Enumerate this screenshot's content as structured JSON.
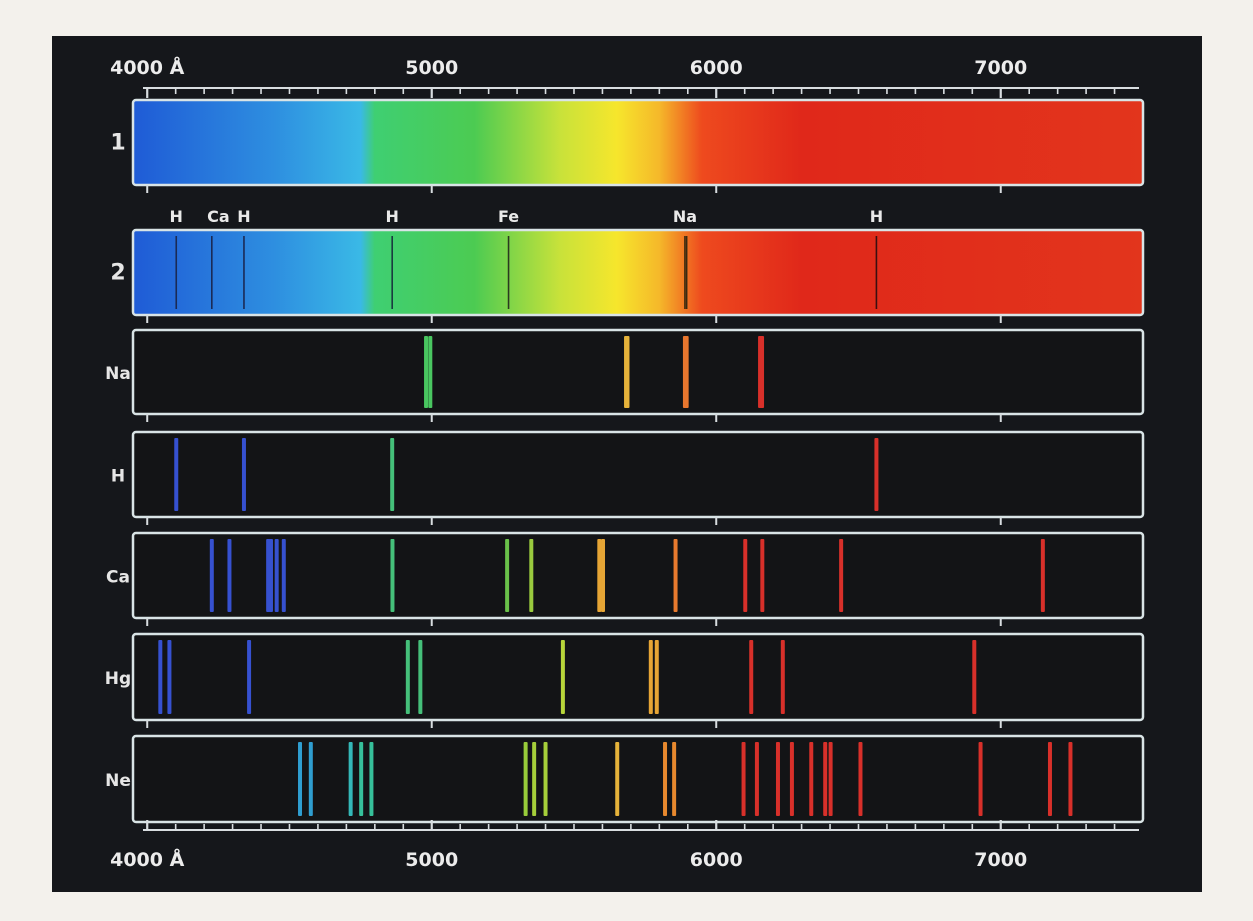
{
  "axis": {
    "min": 3950,
    "max": 7500,
    "major_ticks": [
      {
        "value": 4000,
        "label": "4000 Å"
      },
      {
        "value": 5000,
        "label": "5000"
      },
      {
        "value": 6000,
        "label": "6000"
      },
      {
        "value": 7000,
        "label": "7000"
      }
    ],
    "minor_step": 100
  },
  "rows": [
    {
      "id": "1",
      "label": "1",
      "type": "continuous",
      "gradient": [
        {
          "value": 3950,
          "color": "#1f5bd6"
        },
        {
          "value": 4450,
          "color": "#2e8fe0"
        },
        {
          "value": 4750,
          "color": "#3ab9e6"
        },
        {
          "value": 4800,
          "color": "#3fcf72"
        },
        {
          "value": 5150,
          "color": "#4ccb52"
        },
        {
          "value": 5450,
          "color": "#c8e23a"
        },
        {
          "value": 5650,
          "color": "#f6e62c"
        },
        {
          "value": 5800,
          "color": "#f5b82a"
        },
        {
          "value": 5950,
          "color": "#ee4a1e"
        },
        {
          "value": 6300,
          "color": "#e0281a"
        },
        {
          "value": 7500,
          "color": "#e2351c"
        }
      ],
      "lines": []
    },
    {
      "id": "2",
      "label": "2",
      "type": "absorption",
      "gradient": [
        {
          "value": 3950,
          "color": "#1f5bd6"
        },
        {
          "value": 4450,
          "color": "#2e8fe0"
        },
        {
          "value": 4750,
          "color": "#3ab9e6"
        },
        {
          "value": 4800,
          "color": "#3fcf72"
        },
        {
          "value": 5150,
          "color": "#4ccb52"
        },
        {
          "value": 5450,
          "color": "#c8e23a"
        },
        {
          "value": 5650,
          "color": "#f6e62c"
        },
        {
          "value": 5800,
          "color": "#f5b82a"
        },
        {
          "value": 5950,
          "color": "#ee4a1e"
        },
        {
          "value": 6300,
          "color": "#e0281a"
        },
        {
          "value": 7500,
          "color": "#e2351c"
        }
      ],
      "annotations": [
        {
          "value": 4102,
          "text": "H"
        },
        {
          "value": 4250,
          "text": "Ca"
        },
        {
          "value": 4340,
          "text": "H"
        },
        {
          "value": 4861,
          "text": "H"
        },
        {
          "value": 5270,
          "text": "Fe"
        },
        {
          "value": 5890,
          "text": "Na"
        },
        {
          "value": 6563,
          "text": "H"
        }
      ],
      "lines": [
        {
          "value": 4102,
          "color": "#1a2a55"
        },
        {
          "value": 4227,
          "color": "#1a2a55"
        },
        {
          "value": 4340,
          "color": "#1a2a55"
        },
        {
          "value": 4861,
          "color": "#1a3a40"
        },
        {
          "value": 5270,
          "color": "#2a3a20"
        },
        {
          "value": 5890,
          "color": "#3a2a10"
        },
        {
          "value": 5896,
          "color": "#3a2a10"
        },
        {
          "value": 6563,
          "color": "#3a1010"
        }
      ]
    },
    {
      "id": "na",
      "label": "Na",
      "type": "emission",
      "lines": [
        {
          "value": 4980,
          "color": "#49c660"
        },
        {
          "value": 4995,
          "color": "#49c660"
        },
        {
          "value": 5683,
          "color": "#e6b33a"
        },
        {
          "value": 5688,
          "color": "#e6b33a"
        },
        {
          "value": 5890,
          "color": "#e8772e"
        },
        {
          "value": 5896,
          "color": "#e8772e"
        },
        {
          "value": 6154,
          "color": "#d8302a"
        },
        {
          "value": 6161,
          "color": "#d8302a"
        }
      ]
    },
    {
      "id": "h",
      "label": "H",
      "type": "emission",
      "lines": [
        {
          "value": 4102,
          "color": "#3651d0"
        },
        {
          "value": 4340,
          "color": "#3651d0"
        },
        {
          "value": 4861,
          "color": "#45c07a"
        },
        {
          "value": 6563,
          "color": "#d8302a"
        }
      ]
    },
    {
      "id": "ca",
      "label": "Ca",
      "type": "emission",
      "lines": [
        {
          "value": 4227,
          "color": "#3651d0"
        },
        {
          "value": 4289,
          "color": "#3651d0"
        },
        {
          "value": 4425,
          "color": "#3651d0"
        },
        {
          "value": 4435,
          "color": "#3651d0"
        },
        {
          "value": 4455,
          "color": "#3651d0"
        },
        {
          "value": 4480,
          "color": "#3651d0"
        },
        {
          "value": 4862,
          "color": "#45c07a"
        },
        {
          "value": 5265,
          "color": "#6ac24a"
        },
        {
          "value": 5350,
          "color": "#9acb3e"
        },
        {
          "value": 5589,
          "color": "#e6a535"
        },
        {
          "value": 5602,
          "color": "#e6a535"
        },
        {
          "value": 5857,
          "color": "#e87a2e"
        },
        {
          "value": 6102,
          "color": "#d8302a"
        },
        {
          "value": 6162,
          "color": "#d8302a"
        },
        {
          "value": 6439,
          "color": "#d8302a"
        },
        {
          "value": 7148,
          "color": "#d8302a"
        }
      ]
    },
    {
      "id": "hg",
      "label": "Hg",
      "type": "emission",
      "lines": [
        {
          "value": 4046,
          "color": "#3651d0"
        },
        {
          "value": 4078,
          "color": "#3651d0"
        },
        {
          "value": 4358,
          "color": "#3651d0"
        },
        {
          "value": 4916,
          "color": "#45c07a"
        },
        {
          "value": 4960,
          "color": "#45c07a"
        },
        {
          "value": 5461,
          "color": "#b8d63a"
        },
        {
          "value": 5770,
          "color": "#e6a535"
        },
        {
          "value": 5791,
          "color": "#e6a535"
        },
        {
          "value": 6123,
          "color": "#d8302a"
        },
        {
          "value": 6234,
          "color": "#d8302a"
        },
        {
          "value": 6907,
          "color": "#d8302a"
        }
      ]
    },
    {
      "id": "ne",
      "label": "Ne",
      "type": "emission",
      "lines": [
        {
          "value": 4537,
          "color": "#2f9ed0"
        },
        {
          "value": 4575,
          "color": "#2f9ed0"
        },
        {
          "value": 4715,
          "color": "#34b8b8"
        },
        {
          "value": 4752,
          "color": "#36c09a"
        },
        {
          "value": 4788,
          "color": "#36c09a"
        },
        {
          "value": 5330,
          "color": "#98cc3a"
        },
        {
          "value": 5360,
          "color": "#a6cf3a"
        },
        {
          "value": 5400,
          "color": "#a6cf3a"
        },
        {
          "value": 5652,
          "color": "#e6b33a"
        },
        {
          "value": 5820,
          "color": "#e8892e"
        },
        {
          "value": 5852,
          "color": "#e8892e"
        },
        {
          "value": 6096,
          "color": "#d8302a"
        },
        {
          "value": 6143,
          "color": "#d8302a"
        },
        {
          "value": 6217,
          "color": "#d8302a"
        },
        {
          "value": 6266,
          "color": "#d8302a"
        },
        {
          "value": 6334,
          "color": "#d8302a"
        },
        {
          "value": 6383,
          "color": "#d8302a"
        },
        {
          "value": 6402,
          "color": "#d8302a"
        },
        {
          "value": 6507,
          "color": "#d8302a"
        },
        {
          "value": 6929,
          "color": "#d8302a"
        },
        {
          "value": 7173,
          "color": "#d8302a"
        },
        {
          "value": 7245,
          "color": "#d8302a"
        }
      ]
    }
  ]
}
